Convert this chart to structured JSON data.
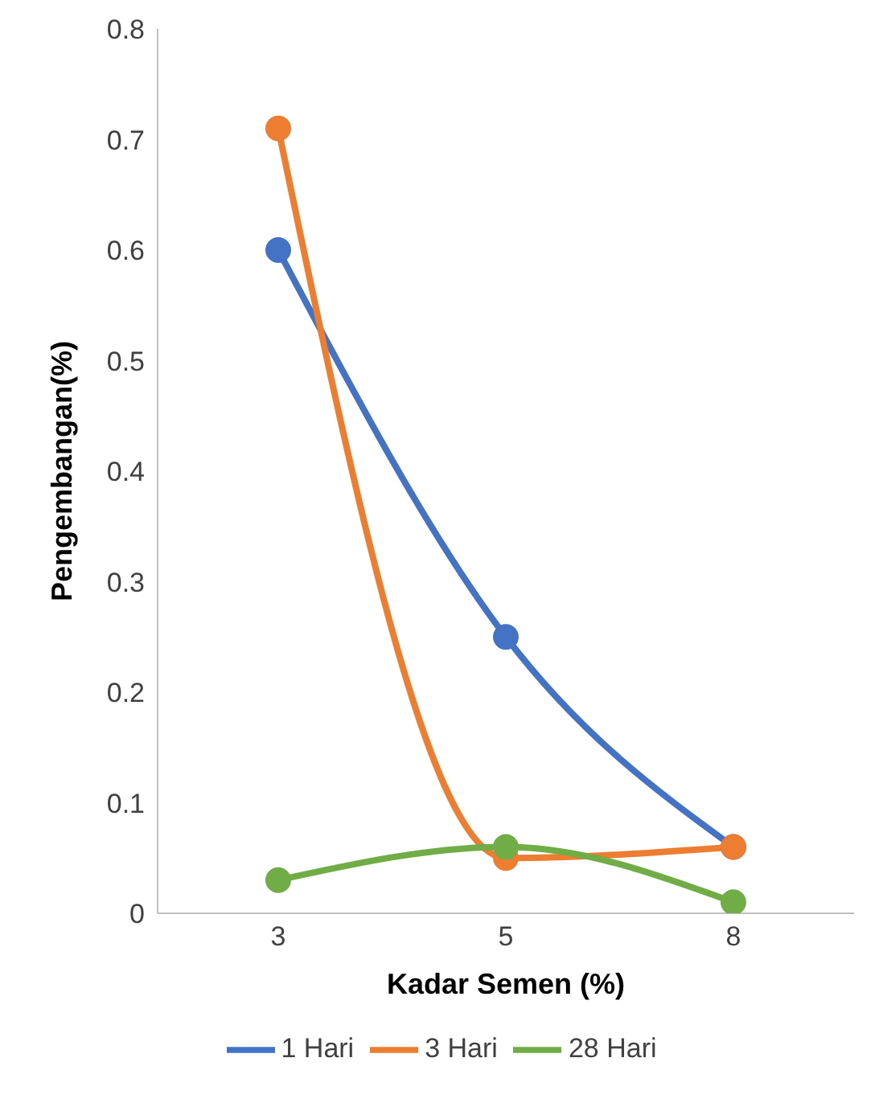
{
  "chart_data": {
    "type": "line",
    "xlabel": "Kadar Semen (%)",
    "ylabel": "Pengembangan(%)",
    "categories": [
      "3",
      "5",
      "8"
    ],
    "series": [
      {
        "name": "1 Hari",
        "color": "#4472c4",
        "values": [
          0.6,
          0.25,
          0.06
        ]
      },
      {
        "name": "3 Hari",
        "color": "#ed7d31",
        "values": [
          0.71,
          0.05,
          0.06
        ]
      },
      {
        "name": "28 Hari",
        "color": "#70ad47",
        "values": [
          0.03,
          0.06,
          0.01
        ]
      }
    ],
    "ylim": [
      0,
      0.8
    ],
    "yticks": [
      0,
      0.1,
      0.2,
      0.3,
      0.4,
      0.5,
      0.6,
      0.7,
      0.8
    ],
    "grid": false,
    "legend": "bottom",
    "marker": "circle",
    "line_style": "solid"
  }
}
